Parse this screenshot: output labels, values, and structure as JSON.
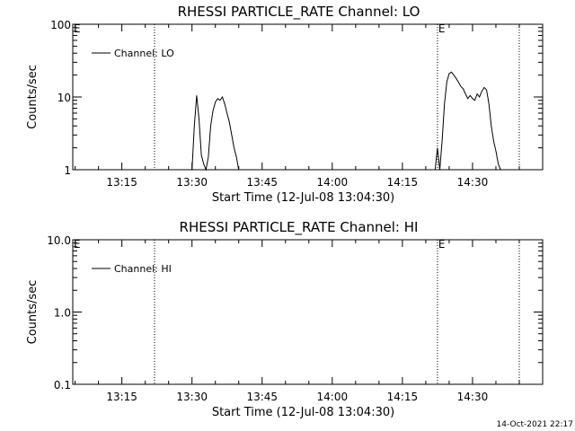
{
  "chart_data": [
    {
      "type": "line",
      "title": "RHESSI PARTICLE_RATE Channel: LO",
      "xlabel": "Start Time (12-Jul-08 13:04:30)",
      "ylabel": "Counts/sec",
      "yscale": "log",
      "ylim": [
        1,
        100
      ],
      "ytick_labels": [
        "1",
        "10",
        "100"
      ],
      "xlim": [
        "13:04:30",
        "14:45:00"
      ],
      "xtick_labels": [
        "13:15",
        "13:30",
        "13:45",
        "14:00",
        "14:15",
        "14:30"
      ],
      "grid": false,
      "legend_position": "top-left",
      "event_markers": [
        {
          "time": "13:22:00",
          "label": "E"
        },
        {
          "time": "14:22:30",
          "label": "E"
        },
        {
          "time": "14:40:00",
          "label": ""
        }
      ],
      "series": [
        {
          "name": "Channel: LO",
          "segments": [
            {
              "x": [
                "13:30:00",
                "13:30:30",
                "13:31:00",
                "13:31:30",
                "13:32:00",
                "13:32:30",
                "13:33:00",
                "13:33:30",
                "13:34:00",
                "13:34:30",
                "13:35:00",
                "13:35:30",
                "13:36:00",
                "13:36:30",
                "13:37:00",
                "13:37:30",
                "13:38:00",
                "13:38:30",
                "13:39:00",
                "13:39:30",
                "13:40:00"
              ],
              "y": [
                1.0,
                4.0,
                10.5,
                5.0,
                1.6,
                1.2,
                1.0,
                1.5,
                4.0,
                6.5,
                8.5,
                9.5,
                9.0,
                10.0,
                8.0,
                6.0,
                4.5,
                3.0,
                2.0,
                1.5,
                1.0
              ]
            },
            {
              "x": [
                "14:22:00",
                "14:22:30",
                "14:23:00",
                "14:23:30",
                "14:24:00",
                "14:24:30",
                "14:25:00",
                "14:25:30",
                "14:26:00",
                "14:26:30",
                "14:27:00",
                "14:27:30",
                "14:28:00",
                "14:28:30",
                "14:29:00",
                "14:29:30",
                "14:30:00",
                "14:30:30",
                "14:31:00",
                "14:31:30",
                "14:32:00",
                "14:32:30",
                "14:33:00",
                "14:33:30",
                "14:34:00",
                "14:34:30",
                "14:35:00",
                "14:35:30",
                "14:36:00"
              ],
              "y": [
                1.0,
                2.0,
                1.0,
                2.5,
                8.0,
                16.0,
                21.0,
                22.0,
                20.0,
                18.0,
                16.0,
                14.0,
                13.0,
                11.0,
                9.5,
                10.5,
                9.5,
                9.0,
                11.0,
                10.0,
                12.0,
                13.5,
                12.5,
                8.0,
                4.0,
                2.5,
                1.8,
                1.2,
                1.0
              ]
            }
          ]
        }
      ]
    },
    {
      "type": "line",
      "title": "RHESSI PARTICLE_RATE Channel: HI",
      "xlabel": "Start Time (12-Jul-08 13:04:30)",
      "ylabel": "Counts/sec",
      "yscale": "log",
      "ylim": [
        0.1,
        10
      ],
      "ytick_labels": [
        "0.1",
        "1.0",
        "10.0"
      ],
      "xlim": [
        "13:04:30",
        "14:45:00"
      ],
      "xtick_labels": [
        "13:15",
        "13:30",
        "13:45",
        "14:00",
        "14:15",
        "14:30"
      ],
      "grid": false,
      "legend_position": "top-left",
      "event_markers": [
        {
          "time": "13:22:00",
          "label": "E"
        },
        {
          "time": "14:22:30",
          "label": "E"
        },
        {
          "time": "14:40:00",
          "label": ""
        }
      ],
      "series": [
        {
          "name": "Channel: HI",
          "segments": []
        }
      ]
    }
  ],
  "footer": {
    "timestamp": "14-Oct-2021 22:17"
  }
}
